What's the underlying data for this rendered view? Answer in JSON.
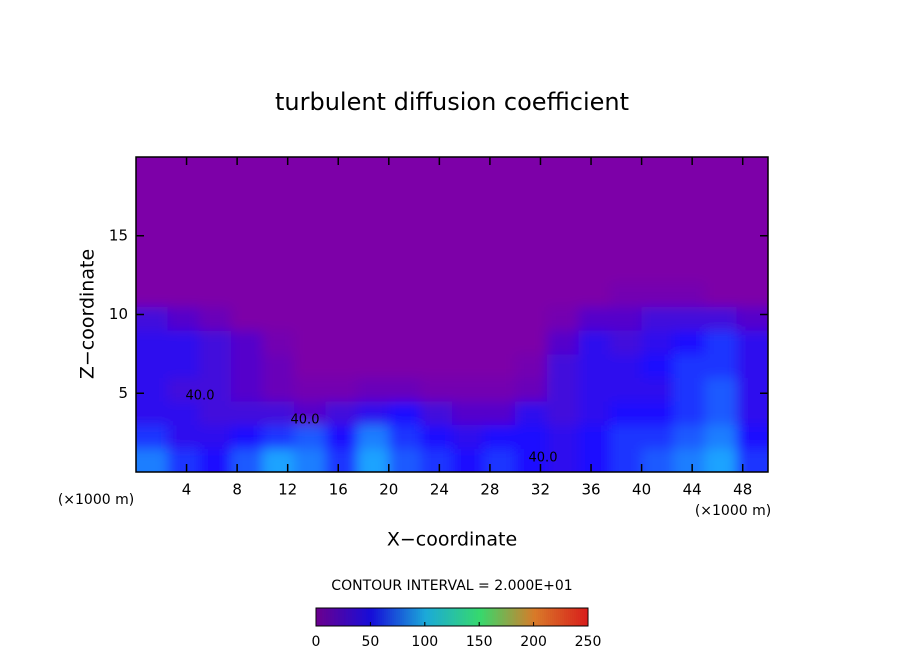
{
  "chart_data": {
    "type": "heatmap",
    "title": "turbulent diffusion coefficient",
    "x_label": "X−coordinate",
    "y_label": "Z−coordinate",
    "x_unit": "(×1000 m)",
    "y_unit": "(×1000 m)",
    "annotation": "CONTOUR INTERVAL = 2.000E+01",
    "contour_labels": [
      "40.0",
      "40.0",
      "40.0"
    ],
    "xlim": [
      0,
      50
    ],
    "ylim": [
      0,
      20
    ],
    "xticks": [
      4,
      8,
      12,
      16,
      20,
      24,
      28,
      32,
      36,
      40,
      44,
      48
    ],
    "yticks": [
      5,
      10,
      15
    ],
    "x": [
      1.25,
      3.75,
      6.25,
      8.75,
      11.25,
      13.75,
      16.25,
      18.75,
      21.25,
      23.75,
      26.25,
      28.75,
      31.25,
      33.75,
      36.25,
      38.75,
      41.25,
      43.75,
      46.25,
      48.75
    ],
    "z": [
      0.75,
      2.25,
      3.75,
      5.25,
      6.75,
      8.25,
      9.75,
      11.25
    ],
    "values": [
      [
        80,
        60,
        50,
        70,
        90,
        80,
        60,
        90,
        70,
        60,
        50,
        60,
        50,
        40,
        50,
        60,
        70,
        80,
        90,
        60
      ],
      [
        60,
        40,
        40,
        50,
        60,
        70,
        50,
        80,
        60,
        50,
        40,
        50,
        50,
        40,
        50,
        60,
        60,
        70,
        80,
        50
      ],
      [
        40,
        40,
        30,
        30,
        30,
        20,
        30,
        40,
        50,
        30,
        20,
        20,
        40,
        30,
        40,
        50,
        50,
        60,
        70,
        40
      ],
      [
        40,
        30,
        30,
        20,
        10,
        5,
        5,
        10,
        10,
        5,
        5,
        5,
        10,
        30,
        40,
        40,
        40,
        60,
        70,
        40
      ],
      [
        40,
        40,
        30,
        20,
        10,
        0,
        0,
        0,
        0,
        0,
        0,
        0,
        5,
        30,
        40,
        40,
        50,
        60,
        60,
        40
      ],
      [
        40,
        40,
        30,
        20,
        5,
        0,
        0,
        0,
        0,
        0,
        0,
        0,
        0,
        20,
        40,
        30,
        40,
        50,
        60,
        40
      ],
      [
        30,
        20,
        10,
        0,
        0,
        0,
        0,
        0,
        0,
        0,
        0,
        0,
        0,
        5,
        20,
        20,
        30,
        30,
        30,
        20
      ],
      [
        0,
        0,
        0,
        0,
        0,
        0,
        0,
        0,
        0,
        0,
        0,
        0,
        0,
        0,
        0,
        5,
        5,
        5,
        0,
        0
      ]
    ],
    "colorscale": [
      "#7d00a8",
      "#1a10ff",
      "#20c8ff",
      "#40ff80",
      "#ff9030",
      "#ff2020"
    ],
    "clim": [
      0,
      250
    ],
    "colorbar_ticks": [
      0,
      50,
      100,
      150,
      200,
      250
    ]
  }
}
